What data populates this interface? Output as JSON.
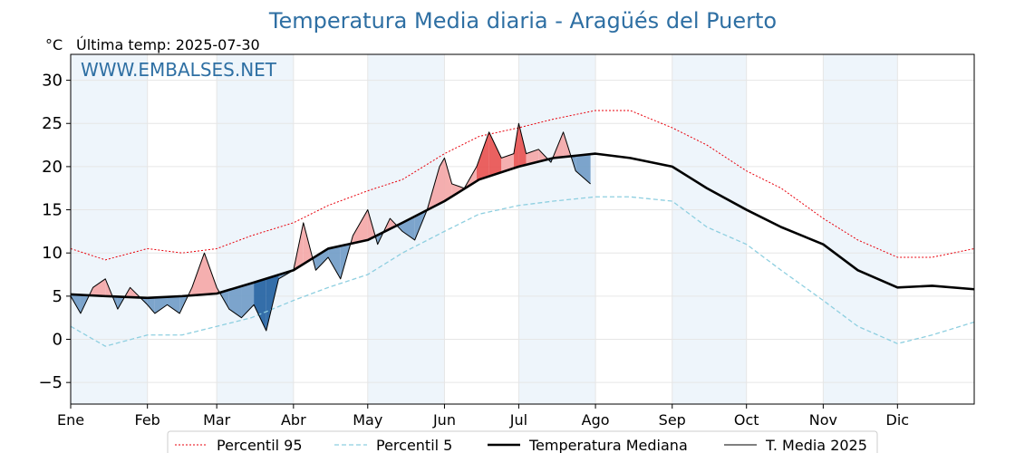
{
  "title": "Temperatura Media diaria - Aragüés del Puerto",
  "unit_label": "°C",
  "last_temp_label": "Última temp: 2025-07-30",
  "watermark": "WWW.EMBALSES.NET",
  "colors": {
    "title": "#2e6fa3",
    "p95": "#e8000b",
    "p5": "#8ecfe0",
    "median": "#000000",
    "media2025": "#000000",
    "above_fill": "#f4a6a6",
    "above_fill_strong": "#e8504f",
    "below_fill": "#6f9bc6",
    "below_fill_strong": "#1f5fa0",
    "month_band": "#eef5fb"
  },
  "chart_data": {
    "type": "line",
    "title": "Temperatura Media diaria - Aragüés del Puerto",
    "ylabel": "°C",
    "ylim": [
      -7.5,
      33
    ],
    "yticks": [
      -5,
      0,
      5,
      10,
      15,
      20,
      25,
      30
    ],
    "xlim": [
      1,
      366
    ],
    "month_ticks": [
      {
        "label": "Ene",
        "day": 1
      },
      {
        "label": "Feb",
        "day": 32
      },
      {
        "label": "Mar",
        "day": 60
      },
      {
        "label": "Abr",
        "day": 91
      },
      {
        "label": "May",
        "day": 121
      },
      {
        "label": "Jun",
        "day": 152
      },
      {
        "label": "Jul",
        "day": 182
      },
      {
        "label": "Ago",
        "day": 213
      },
      {
        "label": "Sep",
        "day": 244
      },
      {
        "label": "Oct",
        "day": 274
      },
      {
        "label": "Nov",
        "day": 305
      },
      {
        "label": "Dic",
        "day": 335
      }
    ],
    "grid": true,
    "legend_placement": "bottom-center",
    "series": [
      {
        "name": "Percentil 95",
        "style": "dotted",
        "x": [
          1,
          15,
          32,
          46,
          60,
          74,
          91,
          105,
          121,
          135,
          152,
          166,
          182,
          196,
          213,
          227,
          244,
          258,
          274,
          288,
          305,
          319,
          335,
          349,
          366
        ],
        "y": [
          10.5,
          9.2,
          10.5,
          10,
          10.5,
          12,
          13.5,
          15.5,
          17.2,
          18.5,
          21.5,
          23.5,
          24.5,
          25.5,
          26.5,
          26.5,
          24.5,
          22.5,
          19.5,
          17.5,
          14,
          11.5,
          9.5,
          9.5,
          10.5
        ]
      },
      {
        "name": "Percentil 5",
        "style": "dashed",
        "x": [
          1,
          15,
          32,
          46,
          60,
          74,
          91,
          105,
          121,
          135,
          152,
          166,
          182,
          196,
          213,
          227,
          244,
          258,
          274,
          288,
          305,
          319,
          335,
          349,
          366
        ],
        "y": [
          1.5,
          -0.8,
          0.5,
          0.5,
          1.5,
          2.5,
          4.5,
          6,
          7.5,
          10,
          12.5,
          14.5,
          15.5,
          16,
          16.5,
          16.5,
          16,
          13,
          11,
          8,
          4.5,
          1.5,
          -0.5,
          0.5,
          2
        ]
      },
      {
        "name": "Temperatura Mediana",
        "style": "solid-thick",
        "x": [
          1,
          15,
          32,
          46,
          60,
          74,
          91,
          105,
          121,
          135,
          152,
          166,
          182,
          196,
          213,
          227,
          244,
          258,
          274,
          288,
          305,
          319,
          335,
          349,
          366
        ],
        "y": [
          5.2,
          5,
          4.8,
          5,
          5.3,
          6.5,
          8,
          10.5,
          11.5,
          13.5,
          16,
          18.5,
          20,
          21,
          21.5,
          21,
          20,
          17.5,
          15,
          13,
          11,
          8,
          6,
          6.2,
          5.8
        ]
      },
      {
        "name": "T. Media 2025",
        "style": "solid-thin",
        "x": [
          1,
          5,
          10,
          15,
          20,
          25,
          32,
          35,
          40,
          45,
          50,
          55,
          60,
          65,
          70,
          75,
          80,
          85,
          91,
          95,
          100,
          105,
          110,
          115,
          121,
          125,
          130,
          135,
          140,
          145,
          150,
          152,
          155,
          160,
          165,
          170,
          175,
          180,
          182,
          185,
          190,
          195,
          200,
          205,
          211
        ],
        "y": [
          5,
          3,
          6,
          7,
          3.5,
          6,
          4,
          3,
          4,
          3,
          6,
          10,
          6,
          3.5,
          2.5,
          4,
          1,
          7,
          8,
          13.5,
          8,
          9.5,
          7,
          12,
          15,
          11,
          14,
          12.5,
          11.5,
          15,
          20,
          21,
          18,
          17.5,
          20,
          24,
          21,
          21.5,
          25,
          21.5,
          22,
          20.5,
          24,
          19.5,
          18
        ]
      }
    ]
  }
}
